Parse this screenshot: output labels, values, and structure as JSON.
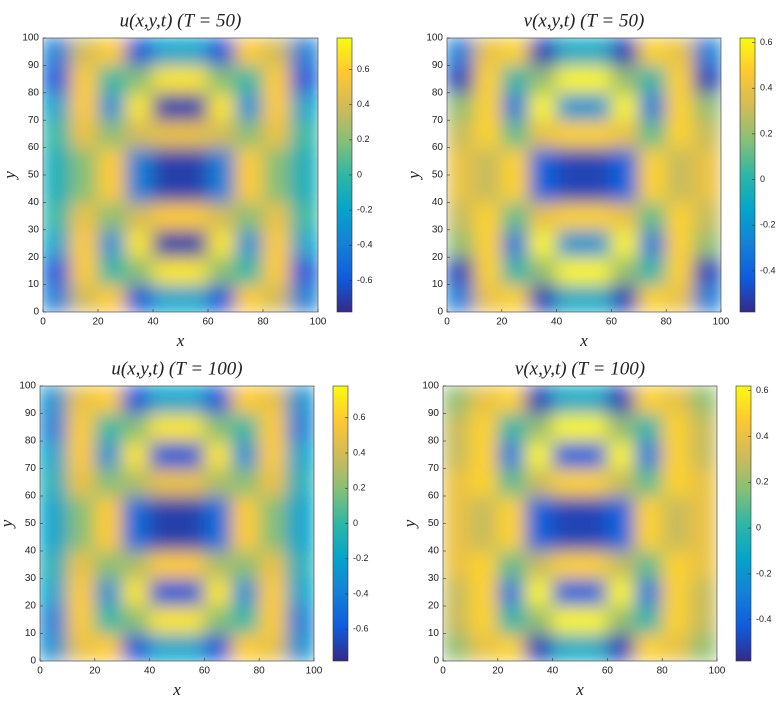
{
  "chart_data": [
    {
      "type": "heatmap",
      "title": "u(x,y,t) (T = 50)",
      "xlabel": "x",
      "ylabel": "y",
      "x": [
        5,
        15,
        25,
        35,
        45,
        55,
        65,
        75,
        85,
        95
      ],
      "y": [
        5,
        15,
        25,
        35,
        45,
        55,
        65,
        75,
        85,
        95
      ],
      "values": [
        [
          -0.4,
          0.4,
          0.6,
          -0.6,
          -0.2,
          -0.2,
          -0.6,
          0.6,
          0.4,
          -0.4
        ],
        [
          -0.6,
          0.6,
          0.0,
          0.2,
          0.7,
          0.7,
          0.2,
          0.0,
          0.6,
          -0.6
        ],
        [
          -0.2,
          0.6,
          -0.3,
          0.7,
          -0.7,
          -0.7,
          0.7,
          -0.3,
          0.6,
          -0.2
        ],
        [
          0.0,
          0.5,
          0.2,
          0.4,
          0.6,
          0.6,
          0.4,
          0.2,
          0.5,
          0.0
        ],
        [
          -0.1,
          0.2,
          0.6,
          -0.4,
          -0.7,
          -0.7,
          -0.4,
          0.6,
          0.2,
          -0.1
        ],
        [
          -0.1,
          0.2,
          0.6,
          -0.4,
          -0.7,
          -0.7,
          -0.4,
          0.6,
          0.2,
          -0.1
        ],
        [
          0.0,
          0.5,
          0.2,
          0.4,
          0.5,
          0.5,
          0.4,
          0.2,
          0.5,
          0.0
        ],
        [
          -0.2,
          0.6,
          -0.3,
          0.7,
          -0.7,
          -0.7,
          0.7,
          -0.3,
          0.6,
          -0.2
        ],
        [
          -0.6,
          0.6,
          0.0,
          0.2,
          0.7,
          0.7,
          0.2,
          0.0,
          0.6,
          -0.6
        ],
        [
          -0.4,
          0.4,
          0.6,
          -0.6,
          -0.2,
          -0.2,
          -0.6,
          0.6,
          0.4,
          -0.4
        ]
      ],
      "xlim": [
        0,
        100
      ],
      "ylim": [
        0,
        100
      ],
      "xticks": [
        0,
        20,
        40,
        60,
        80,
        100
      ],
      "yticks": [
        0,
        10,
        20,
        30,
        40,
        50,
        60,
        70,
        80,
        90,
        100
      ],
      "clim": [
        -0.78,
        0.78
      ],
      "cticks": [
        -0.6,
        -0.4,
        -0.2,
        0,
        0.2,
        0.4,
        0.6
      ]
    },
    {
      "type": "heatmap",
      "title": "v(x,y,t) (T = 50)",
      "xlabel": "x",
      "ylabel": "y",
      "x": [
        5,
        15,
        25,
        35,
        45,
        55,
        65,
        75,
        85,
        95
      ],
      "y": [
        5,
        15,
        25,
        35,
        45,
        55,
        65,
        75,
        85,
        95
      ],
      "values": [
        [
          -0.3,
          0.4,
          0.5,
          -0.5,
          -0.1,
          -0.1,
          -0.5,
          0.5,
          0.4,
          -0.3
        ],
        [
          -0.5,
          0.5,
          0.0,
          0.2,
          0.6,
          0.6,
          0.2,
          0.0,
          0.5,
          -0.5
        ],
        [
          0.2,
          0.5,
          -0.3,
          0.6,
          -0.2,
          -0.2,
          0.6,
          -0.3,
          0.5,
          0.2
        ],
        [
          0.3,
          0.5,
          0.1,
          0.4,
          0.5,
          0.5,
          0.4,
          0.1,
          0.5,
          0.3
        ],
        [
          0.4,
          0.3,
          0.5,
          -0.4,
          -0.5,
          -0.5,
          -0.4,
          0.5,
          0.3,
          0.4
        ],
        [
          0.4,
          0.3,
          0.5,
          -0.4,
          -0.5,
          -0.5,
          -0.4,
          0.5,
          0.3,
          0.4
        ],
        [
          0.3,
          0.5,
          0.1,
          0.4,
          0.5,
          0.5,
          0.4,
          0.1,
          0.5,
          0.3
        ],
        [
          0.2,
          0.5,
          -0.3,
          0.6,
          -0.2,
          -0.2,
          0.6,
          -0.3,
          0.5,
          0.2
        ],
        [
          -0.5,
          0.5,
          0.0,
          0.2,
          0.6,
          0.6,
          0.2,
          0.0,
          0.5,
          -0.5
        ],
        [
          -0.3,
          0.4,
          0.5,
          -0.5,
          -0.1,
          -0.1,
          -0.5,
          0.5,
          0.4,
          -0.3
        ]
      ],
      "xlim": [
        0,
        100
      ],
      "ylim": [
        0,
        100
      ],
      "xticks": [
        0,
        20,
        40,
        60,
        80,
        100
      ],
      "yticks": [
        0,
        10,
        20,
        30,
        40,
        50,
        60,
        70,
        80,
        90,
        100
      ],
      "clim": [
        -0.58,
        0.62
      ],
      "cticks": [
        -0.4,
        -0.2,
        0,
        0.2,
        0.4,
        0.6
      ]
    },
    {
      "type": "heatmap",
      "title": "u(x,y,t) (T = 100)",
      "xlabel": "x",
      "ylabel": "y",
      "x": [
        5,
        15,
        25,
        35,
        45,
        55,
        65,
        75,
        85,
        95
      ],
      "y": [
        5,
        15,
        25,
        35,
        45,
        55,
        65,
        75,
        85,
        95
      ],
      "values": [
        [
          -0.3,
          0.5,
          0.6,
          -0.6,
          -0.2,
          -0.2,
          -0.6,
          0.6,
          0.5,
          -0.3
        ],
        [
          -0.4,
          0.6,
          0.0,
          0.2,
          0.7,
          0.7,
          0.2,
          0.0,
          0.6,
          -0.4
        ],
        [
          -0.2,
          0.6,
          -0.3,
          0.7,
          -0.6,
          -0.6,
          0.7,
          -0.3,
          0.6,
          -0.2
        ],
        [
          -0.1,
          0.5,
          0.2,
          0.3,
          0.6,
          0.6,
          0.3,
          0.2,
          0.5,
          -0.1
        ],
        [
          -0.2,
          0.2,
          0.6,
          -0.5,
          -0.7,
          -0.7,
          -0.5,
          0.6,
          0.2,
          -0.2
        ],
        [
          -0.2,
          0.2,
          0.6,
          -0.5,
          -0.7,
          -0.7,
          -0.5,
          0.6,
          0.2,
          -0.2
        ],
        [
          -0.1,
          0.5,
          0.2,
          0.3,
          0.5,
          0.5,
          0.3,
          0.2,
          0.5,
          -0.1
        ],
        [
          -0.2,
          0.6,
          -0.3,
          0.7,
          -0.6,
          -0.6,
          0.7,
          -0.3,
          0.6,
          -0.2
        ],
        [
          -0.4,
          0.6,
          0.0,
          0.2,
          0.7,
          0.7,
          0.2,
          0.0,
          0.6,
          -0.4
        ],
        [
          -0.3,
          0.5,
          0.6,
          -0.6,
          -0.2,
          -0.2,
          -0.6,
          0.6,
          0.5,
          -0.3
        ]
      ],
      "xlim": [
        0,
        100
      ],
      "ylim": [
        0,
        100
      ],
      "xticks": [
        0,
        20,
        40,
        60,
        80,
        100
      ],
      "yticks": [
        0,
        10,
        20,
        30,
        40,
        50,
        60,
        70,
        80,
        90,
        100
      ],
      "clim": [
        -0.78,
        0.78
      ],
      "cticks": [
        -0.6,
        -0.4,
        -0.2,
        0,
        0.2,
        0.4,
        0.6
      ]
    },
    {
      "type": "heatmap",
      "title": "v(x,y,t) (T = 100)",
      "xlabel": "x",
      "ylabel": "y",
      "x": [
        5,
        15,
        25,
        35,
        45,
        55,
        65,
        75,
        85,
        95
      ],
      "y": [
        5,
        15,
        25,
        35,
        45,
        55,
        65,
        75,
        85,
        95
      ],
      "values": [
        [
          0.2,
          0.4,
          0.5,
          -0.5,
          -0.1,
          -0.1,
          -0.5,
          0.5,
          0.4,
          0.2
        ],
        [
          0.3,
          0.5,
          0.0,
          0.2,
          0.6,
          0.6,
          0.2,
          0.0,
          0.5,
          0.3
        ],
        [
          0.3,
          0.5,
          -0.3,
          0.6,
          -0.4,
          -0.4,
          0.6,
          -0.3,
          0.5,
          0.3
        ],
        [
          0.4,
          0.5,
          0.1,
          0.3,
          0.5,
          0.5,
          0.3,
          0.1,
          0.5,
          0.4
        ],
        [
          0.4,
          0.3,
          0.5,
          -0.4,
          -0.5,
          -0.5,
          -0.4,
          0.5,
          0.3,
          0.4
        ],
        [
          0.4,
          0.3,
          0.5,
          -0.4,
          -0.5,
          -0.5,
          -0.4,
          0.5,
          0.3,
          0.4
        ],
        [
          0.4,
          0.5,
          0.1,
          0.3,
          0.5,
          0.5,
          0.3,
          0.1,
          0.5,
          0.4
        ],
        [
          0.3,
          0.5,
          -0.3,
          0.6,
          -0.4,
          -0.4,
          0.6,
          -0.3,
          0.5,
          0.3
        ],
        [
          0.3,
          0.5,
          0.0,
          0.2,
          0.6,
          0.6,
          0.2,
          0.0,
          0.5,
          0.3
        ],
        [
          0.2,
          0.4,
          0.5,
          -0.5,
          -0.1,
          -0.1,
          -0.5,
          0.5,
          0.4,
          0.2
        ]
      ],
      "xlim": [
        0,
        100
      ],
      "ylim": [
        0,
        100
      ],
      "xticks": [
        0,
        20,
        40,
        60,
        80,
        100
      ],
      "yticks": [
        0,
        10,
        20,
        30,
        40,
        50,
        60,
        70,
        80,
        90,
        100
      ],
      "clim": [
        -0.58,
        0.62
      ],
      "cticks": [
        -0.4,
        -0.2,
        0,
        0.2,
        0.4,
        0.6
      ]
    }
  ]
}
